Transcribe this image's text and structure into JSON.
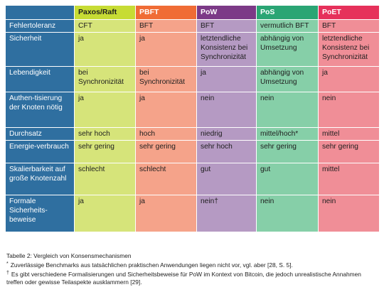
{
  "colors": {
    "rowhead": "#2f6fa0",
    "header_text": [
      "#1e1e1e",
      "#ffffff",
      "#ffffff",
      "#ffffff",
      "#ffffff"
    ],
    "header_bg": [
      "#c7dc34",
      "#f06c35",
      "#7c3a87",
      "#2aa574",
      "#e6315b"
    ],
    "body_bg": [
      "#d6e47a",
      "#f5a38a",
      "#b59ac3",
      "#86cfa8",
      "#f08e97"
    ]
  },
  "columns": [
    "Paxos/Raft",
    "PBFT",
    "PoW",
    "PoS",
    "PoET"
  ],
  "rows": [
    {
      "label": "Fehlertoleranz",
      "cells": [
        "CFT",
        "BFT",
        "BFT",
        "vermutlich BFT",
        "BFT"
      ]
    },
    {
      "label": "Sicherheit",
      "cells": [
        "ja",
        "ja",
        "letztendliche Konsistenz bei Synchronizität",
        "abhängig von Umsetzung",
        "letztendliche Konsistenz bei Synchronizität"
      ]
    },
    {
      "label": "Lebendigkeit",
      "cells": [
        "bei Synchronizität",
        "bei Synchronizität",
        "ja",
        "abhängig von Umsetzung",
        "ja"
      ]
    },
    {
      "label": "Authen-tisierung der Knoten nötig",
      "cells": [
        "ja",
        "ja",
        "nein",
        "nein",
        "nein"
      ]
    },
    {
      "label": "Durchsatz",
      "cells": [
        "sehr hoch",
        "hoch",
        "niedrig",
        "mittel/hoch*",
        "mittel"
      ]
    },
    {
      "label": "Energie-verbrauch",
      "cells": [
        "sehr gering",
        "sehr gering",
        "sehr hoch",
        "sehr gering",
        "sehr gering"
      ]
    },
    {
      "label": "Skalierbarkeit auf große Knotenzahl",
      "cells": [
        "schlecht",
        "schlecht",
        "gut",
        "gut",
        "mittel"
      ]
    },
    {
      "label": "Formale Sicherheits-beweise",
      "cells": [
        "ja",
        "ja",
        "nein†",
        "nein",
        "nein"
      ]
    }
  ],
  "caption": "Tabelle 2: Vergleich von Konsensmechanismen",
  "footnotes": [
    {
      "mark": "*",
      "text": "Zuverlässige Benchmarks aus tatsächlichen praktischen Anwendungen liegen nicht vor, vgl. aber [28, S. 5]."
    },
    {
      "mark": "†",
      "text": "Es gibt verschiedene Formalisierungen und Sicherheitsbeweise für PoW im Kontext von Bitcoin, die jedoch unrealistische Annahmen treffen oder gewisse Teilaspekte ausklammern [29]."
    }
  ]
}
